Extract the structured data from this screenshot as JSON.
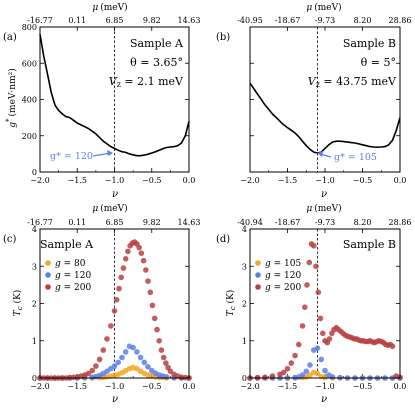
{
  "chart_data": [
    {
      "type": "line",
      "panel_label": "(a)",
      "annotations": {
        "sample": "Sample A",
        "theta": "θ = 3.65°",
        "vz": "V",
        "vz_sub": "z",
        "vz_val": " = 2.1 meV",
        "arrow_text": "g* = 120"
      },
      "xlabel": "ν",
      "ylabel": "g* (meV·nm²)",
      "ylabel_main": "g",
      "ylabel_sup": "*",
      "ylabel_unit": "(meV·nm²)",
      "top_xlabel": "μ (meV)",
      "top_xlabel_sym": "μ",
      "top_xlabel_unit": "(meV)",
      "xlim": [
        -2.0,
        0.0
      ],
      "ylim": [
        0,
        800
      ],
      "xticks": [
        "−2.0",
        "−1.5",
        "−1.0",
        "−0.5",
        "0.0"
      ],
      "yticks": [
        "0",
        "200",
        "400",
        "600",
        "800"
      ],
      "top_ticks": [
        "-16.77",
        "0.11",
        "6.85",
        "9.82",
        "14.63"
      ],
      "vline": -1.0,
      "series": [
        {
          "color": "#000000",
          "x": [
            -2.0,
            -1.95,
            -1.9,
            -1.85,
            -1.8,
            -1.75,
            -1.7,
            -1.65,
            -1.6,
            -1.55,
            -1.5,
            -1.45,
            -1.4,
            -1.35,
            -1.3,
            -1.25,
            -1.2,
            -1.15,
            -1.1,
            -1.05,
            -1.0,
            -0.95,
            -0.9,
            -0.85,
            -0.8,
            -0.75,
            -0.7,
            -0.65,
            -0.6,
            -0.55,
            -0.5,
            -0.45,
            -0.4,
            -0.35,
            -0.3,
            -0.25,
            -0.2,
            -0.15,
            -0.1,
            -0.05,
            0.0
          ],
          "y": [
            760,
            640,
            540,
            440,
            370,
            340,
            320,
            305,
            300,
            285,
            270,
            260,
            250,
            240,
            225,
            210,
            190,
            170,
            155,
            140,
            130,
            120,
            112,
            108,
            100,
            95,
            90,
            90,
            93,
            98,
            105,
            112,
            120,
            128,
            135,
            138,
            140,
            145,
            160,
            200,
            280
          ]
        }
      ]
    },
    {
      "type": "line",
      "panel_label": "(b)",
      "annotations": {
        "sample": "Sample B",
        "theta": "θ = 5°",
        "vz": "V",
        "vz_sub": "z",
        "vz_val": " = 43.75 meV",
        "arrow_text": "g* = 105"
      },
      "xlabel": "ν",
      "ylabel": "",
      "top_xlabel": "μ (meV)",
      "top_xlabel_sym": "μ",
      "top_xlabel_unit": "(meV)",
      "xlim": [
        -2.0,
        0.0
      ],
      "ylim": [
        0,
        800
      ],
      "xticks": [
        "−2.0",
        "−1.5",
        "−1.0",
        "−0.5",
        "0.0"
      ],
      "yticks": [],
      "top_ticks": [
        "-40.95",
        "-18.67",
        "-9.73",
        "8.20",
        "28.86"
      ],
      "vline": -1.1,
      "series": [
        {
          "color": "#000000",
          "x": [
            -2.0,
            -1.95,
            -1.9,
            -1.85,
            -1.8,
            -1.75,
            -1.7,
            -1.65,
            -1.6,
            -1.55,
            -1.5,
            -1.45,
            -1.4,
            -1.35,
            -1.3,
            -1.25,
            -1.2,
            -1.15,
            -1.1,
            -1.05,
            -1.0,
            -0.95,
            -0.9,
            -0.85,
            -0.8,
            -0.75,
            -0.7,
            -0.65,
            -0.6,
            -0.55,
            -0.5,
            -0.45,
            -0.4,
            -0.35,
            -0.3,
            -0.25,
            -0.2,
            -0.15,
            -0.1,
            -0.05,
            0.0
          ],
          "y": [
            490,
            460,
            430,
            400,
            370,
            345,
            320,
            300,
            280,
            260,
            245,
            230,
            215,
            195,
            170,
            145,
            125,
            110,
            105,
            110,
            130,
            150,
            165,
            170,
            170,
            168,
            165,
            162,
            160,
            155,
            150,
            145,
            140,
            138,
            137,
            138,
            140,
            150,
            175,
            230,
            300
          ]
        }
      ]
    },
    {
      "type": "scatter",
      "panel_label": "(c)",
      "annotations": {
        "sample": "Sample A"
      },
      "xlabel": "ν",
      "ylabel": "Tc (K)",
      "ylabel_main": "T",
      "ylabel_sub": "c",
      "ylabel_unit": " (K)",
      "top_xlabel": "μ (meV)",
      "top_xlabel_sym": "μ",
      "top_xlabel_unit": "(meV)",
      "xlim": [
        -2.0,
        0.0
      ],
      "ylim": [
        0,
        4
      ],
      "xticks": [
        "−2.0",
        "−1.5",
        "−1.0",
        "−0.5",
        "0.0"
      ],
      "yticks": [
        "0",
        "1",
        "2",
        "3",
        "4"
      ],
      "top_ticks": [
        "-16.77",
        "0.11",
        "6.85",
        "9.82",
        "14.63"
      ],
      "vline": -1.0,
      "legend": [
        {
          "name_sym": "g",
          "name_val": " = 80",
          "color": "#f5a623"
        },
        {
          "name_sym": "g",
          "name_val": " = 120",
          "color": "#5b7fe6"
        },
        {
          "name_sym": "g",
          "name_val": " = 200",
          "color": "#b94040"
        }
      ],
      "series": [
        {
          "color": "#f5a623",
          "x": [
            -2.0,
            -1.9,
            -1.8,
            -1.7,
            -1.6,
            -1.5,
            -1.4,
            -1.3,
            -1.2,
            -1.15,
            -1.1,
            -1.05,
            -1.0,
            -0.95,
            -0.9,
            -0.85,
            -0.8,
            -0.75,
            -0.7,
            -0.65,
            -0.6,
            -0.55,
            -0.5,
            -0.45,
            -0.4,
            -0.35,
            -0.3,
            -0.2,
            -0.1,
            0.0
          ],
          "y": [
            0,
            0,
            0,
            0,
            0,
            0,
            0,
            0,
            0.01,
            0.02,
            0.03,
            0.05,
            0.07,
            0.1,
            0.14,
            0.2,
            0.25,
            0.28,
            0.25,
            0.18,
            0.12,
            0.08,
            0.05,
            0.03,
            0.02,
            0.01,
            0,
            0,
            0,
            0
          ]
        },
        {
          "color": "#5b7fe6",
          "x": [
            -2.0,
            -1.9,
            -1.8,
            -1.7,
            -1.6,
            -1.5,
            -1.4,
            -1.3,
            -1.25,
            -1.2,
            -1.15,
            -1.1,
            -1.05,
            -1.0,
            -0.95,
            -0.9,
            -0.85,
            -0.8,
            -0.75,
            -0.7,
            -0.65,
            -0.6,
            -0.55,
            -0.5,
            -0.45,
            -0.4,
            -0.35,
            -0.3,
            -0.2,
            -0.1,
            0.0
          ],
          "y": [
            0,
            0,
            0,
            0,
            0,
            0,
            0.01,
            0.02,
            0.04,
            0.07,
            0.12,
            0.18,
            0.25,
            0.32,
            0.42,
            0.55,
            0.7,
            0.85,
            0.82,
            0.7,
            0.55,
            0.42,
            0.3,
            0.2,
            0.13,
            0.08,
            0.05,
            0.03,
            0.01,
            0,
            0
          ]
        },
        {
          "color": "#b94040",
          "x": [
            -2.0,
            -1.95,
            -1.9,
            -1.85,
            -1.8,
            -1.75,
            -1.7,
            -1.65,
            -1.6,
            -1.55,
            -1.5,
            -1.45,
            -1.4,
            -1.35,
            -1.3,
            -1.25,
            -1.2,
            -1.15,
            -1.1,
            -1.05,
            -1.0,
            -0.97,
            -0.94,
            -0.91,
            -0.88,
            -0.85,
            -0.82,
            -0.79,
            -0.76,
            -0.73,
            -0.7,
            -0.67,
            -0.64,
            -0.61,
            -0.58,
            -0.55,
            -0.52,
            -0.49,
            -0.46,
            -0.43,
            -0.4,
            -0.37,
            -0.34,
            -0.31,
            -0.28,
            -0.25,
            -0.2,
            -0.15,
            -0.1,
            -0.05,
            0.0
          ],
          "y": [
            0,
            0,
            0,
            0,
            0,
            0,
            0,
            0,
            0.01,
            0.02,
            0.03,
            0.05,
            0.08,
            0.12,
            0.2,
            0.32,
            0.5,
            0.75,
            1.05,
            1.4,
            1.8,
            2.1,
            2.4,
            2.7,
            2.95,
            3.2,
            3.4,
            3.55,
            3.62,
            3.65,
            3.6,
            3.5,
            3.35,
            3.15,
            2.9,
            2.6,
            2.3,
            1.95,
            1.6,
            1.3,
            1.0,
            0.75,
            0.55,
            0.4,
            0.28,
            0.18,
            0.1,
            0.05,
            0.02,
            0.01,
            0
          ]
        }
      ]
    },
    {
      "type": "scatter",
      "panel_label": "(d)",
      "annotations": {
        "sample": "Sample B"
      },
      "xlabel": "ν",
      "ylabel": "Tc (K)",
      "ylabel_main": "T",
      "ylabel_sub": "c",
      "ylabel_unit": " (K)",
      "top_xlabel": "μ (meV)",
      "top_xlabel_sym": "μ",
      "top_xlabel_unit": "(meV)",
      "xlim": [
        -2.0,
        0.0
      ],
      "ylim": [
        0,
        4
      ],
      "xticks": [
        "−2.0",
        "−1.5",
        "−1.0",
        "−0.5",
        "0.0"
      ],
      "yticks": [
        "0",
        "1",
        "2",
        "3",
        "4"
      ],
      "top_ticks": [
        "-40.94",
        "-18.67",
        "-9.73",
        "8.20",
        "28.86"
      ],
      "vline": -1.1,
      "legend": [
        {
          "name_sym": "g",
          "name_val": " = 105",
          "color": "#f5a623"
        },
        {
          "name_sym": "g",
          "name_val": " = 120",
          "color": "#5b7fe6"
        },
        {
          "name_sym": "g",
          "name_val": " = 200",
          "color": "#b94040"
        }
      ],
      "series": [
        {
          "color": "#f5a623",
          "x": [
            -2.0,
            -1.9,
            -1.8,
            -1.7,
            -1.6,
            -1.5,
            -1.4,
            -1.3,
            -1.25,
            -1.2,
            -1.15,
            -1.1,
            -1.05,
            -1.0,
            -0.9,
            -0.8,
            -0.7,
            -0.6,
            -0.5,
            -0.4,
            -0.3,
            -0.2,
            -0.1,
            0.0
          ],
          "y": [
            0,
            0,
            0,
            0,
            0,
            0,
            0,
            0.01,
            0.03,
            0.08,
            0.15,
            0.12,
            0.04,
            0.01,
            0,
            0,
            0,
            0,
            0,
            0,
            0,
            0,
            0,
            0
          ]
        },
        {
          "color": "#5b7fe6",
          "x": [
            -2.0,
            -1.9,
            -1.8,
            -1.7,
            -1.6,
            -1.5,
            -1.4,
            -1.35,
            -1.3,
            -1.25,
            -1.2,
            -1.15,
            -1.1,
            -1.05,
            -1.0,
            -0.95,
            -0.9,
            -0.8,
            -0.7,
            -0.6,
            -0.5,
            -0.4,
            -0.3,
            -0.2,
            -0.1,
            0.0
          ],
          "y": [
            0,
            0,
            0,
            0,
            0,
            0,
            0.01,
            0.03,
            0.08,
            0.18,
            0.35,
            0.75,
            0.8,
            0.5,
            0.2,
            0.08,
            0.03,
            0.01,
            0,
            0,
            0,
            0,
            0,
            0,
            0,
            0
          ]
        },
        {
          "color": "#b94040",
          "x": [
            -2.0,
            -1.9,
            -1.8,
            -1.7,
            -1.6,
            -1.55,
            -1.5,
            -1.45,
            -1.4,
            -1.35,
            -1.3,
            -1.27,
            -1.24,
            -1.21,
            -1.18,
            -1.15,
            -1.12,
            -1.09,
            -1.06,
            -1.03,
            -1.0,
            -0.97,
            -0.94,
            -0.91,
            -0.88,
            -0.85,
            -0.82,
            -0.79,
            -0.76,
            -0.73,
            -0.7,
            -0.67,
            -0.64,
            -0.61,
            -0.58,
            -0.55,
            -0.52,
            -0.49,
            -0.46,
            -0.43,
            -0.4,
            -0.37,
            -0.34,
            -0.31,
            -0.28,
            -0.25,
            -0.22,
            -0.19,
            -0.16,
            -0.13,
            -0.1,
            -0.05,
            0.0
          ],
          "y": [
            0,
            0.01,
            0.02,
            0.05,
            0.1,
            0.15,
            0.25,
            0.4,
            0.6,
            0.9,
            1.4,
            1.9,
            2.5,
            3.1,
            3.6,
            3.55,
            3.0,
            2.3,
            1.6,
            1.2,
            1.0,
            0.95,
            1.05,
            1.2,
            1.3,
            1.35,
            1.3,
            1.25,
            1.2,
            1.15,
            1.12,
            1.1,
            1.08,
            1.05,
            1.05,
            1.02,
            1.0,
            1.0,
            0.98,
            0.98,
            1.0,
            0.97,
            0.95,
            0.98,
            1.0,
            0.98,
            0.95,
            0.9,
            0.88,
            0.9,
            0.85,
            0.05,
            0.02
          ]
        }
      ]
    }
  ]
}
